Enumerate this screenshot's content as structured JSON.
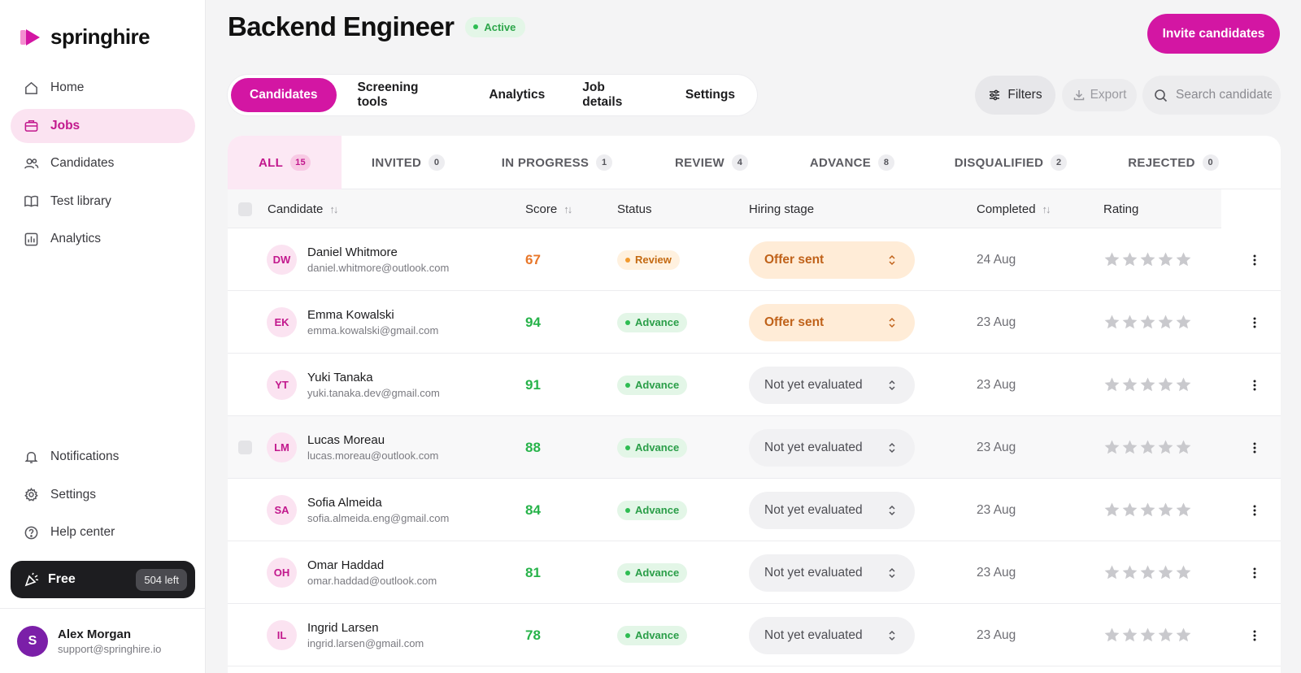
{
  "brand": {
    "name": "springhire",
    "accent": "#d316a3"
  },
  "sidebar": {
    "nav_top": [
      {
        "label": "Home",
        "icon": "home-icon"
      },
      {
        "label": "Jobs",
        "icon": "briefcase-icon",
        "active": true
      },
      {
        "label": "Candidates",
        "icon": "users-icon"
      },
      {
        "label": "Test library",
        "icon": "book-icon"
      },
      {
        "label": "Analytics",
        "icon": "bar-chart-icon"
      }
    ],
    "nav_bottom": [
      {
        "label": "Notifications",
        "icon": "bell-icon"
      },
      {
        "label": "Settings",
        "icon": "gear-icon"
      },
      {
        "label": "Help center",
        "icon": "help-icon"
      }
    ],
    "plan": {
      "label": "Free",
      "remaining": "504 left",
      "icon": "party-popper-icon"
    },
    "user": {
      "initial": "S",
      "name": "Alex Morgan",
      "email": "support@springhire.io"
    }
  },
  "header": {
    "title": "Backend Engineer",
    "status": "Active",
    "invite_label": "Invite candidates"
  },
  "tabs": [
    {
      "label": "Candidates",
      "active": true
    },
    {
      "label": "Screening tools"
    },
    {
      "label": "Analytics"
    },
    {
      "label": "Job details"
    },
    {
      "label": "Settings"
    }
  ],
  "toolbar": {
    "filters_label": "Filters",
    "export_label": "Export",
    "search_placeholder": "Search candidates"
  },
  "status_tabs": [
    {
      "label": "ALL",
      "count": "15",
      "active": true
    },
    {
      "label": "INVITED",
      "count": "0"
    },
    {
      "label": "IN PROGRESS",
      "count": "1"
    },
    {
      "label": "REVIEW",
      "count": "4"
    },
    {
      "label": "ADVANCE",
      "count": "8"
    },
    {
      "label": "DISQUALIFIED",
      "count": "2"
    },
    {
      "label": "REJECTED",
      "count": "0"
    }
  ],
  "table": {
    "columns": {
      "candidate": "Candidate",
      "score": "Score",
      "status": "Status",
      "stage": "Hiring stage",
      "completed": "Completed",
      "rating": "Rating"
    },
    "rows": [
      {
        "initials": "DW",
        "name": "Daniel Whitmore",
        "email": "daniel.whitmore@outlook.com",
        "score": "67",
        "score_color": "orange",
        "status": "Review",
        "stage": "Offer sent",
        "completed": "24 Aug",
        "rating": 0
      },
      {
        "initials": "EK",
        "name": "Emma Kowalski",
        "email": "emma.kowalski@gmail.com",
        "score": "94",
        "score_color": "green",
        "status": "Advance",
        "stage": "Offer sent",
        "completed": "23 Aug",
        "rating": 0
      },
      {
        "initials": "YT",
        "name": "Yuki Tanaka",
        "email": "yuki.tanaka.dev@gmail.com",
        "score": "91",
        "score_color": "green",
        "status": "Advance",
        "stage": "Not yet evaluated",
        "completed": "23 Aug",
        "rating": 0
      },
      {
        "initials": "LM",
        "name": "Lucas Moreau",
        "email": "lucas.moreau@outlook.com",
        "score": "88",
        "score_color": "green",
        "status": "Advance",
        "stage": "Not yet evaluated",
        "completed": "23 Aug",
        "rating": 0,
        "hover": true
      },
      {
        "initials": "SA",
        "name": "Sofia Almeida",
        "email": "sofia.almeida.eng@gmail.com",
        "score": "84",
        "score_color": "green",
        "status": "Advance",
        "stage": "Not yet evaluated",
        "completed": "23 Aug",
        "rating": 0
      },
      {
        "initials": "OH",
        "name": "Omar Haddad",
        "email": "omar.haddad@outlook.com",
        "score": "81",
        "score_color": "green",
        "status": "Advance",
        "stage": "Not yet evaluated",
        "completed": "23 Aug",
        "rating": 0
      },
      {
        "initials": "IL",
        "name": "Ingrid Larsen",
        "email": "ingrid.larsen@gmail.com",
        "score": "78",
        "score_color": "green",
        "status": "Advance",
        "stage": "Not yet evaluated",
        "completed": "23 Aug",
        "rating": 0
      }
    ]
  }
}
